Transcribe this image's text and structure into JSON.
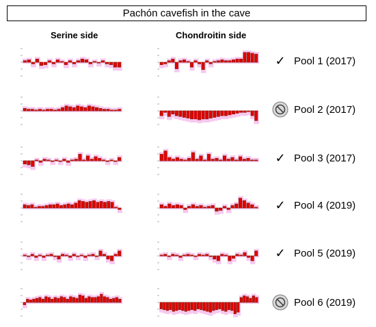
{
  "title": "Pachón cavefish  in the cave",
  "columns": {
    "serine": "Serine side",
    "chondroitin": "Chondroitin side"
  },
  "colors": {
    "bar": "#e00000",
    "bar_edge": "#7a1a00",
    "shadow": "#f6c8ef",
    "tick": "#999999"
  },
  "pools": [
    {
      "label": "Pool 1 (2017)",
      "status": "check-icon"
    },
    {
      "label": "Pool 2 (2017)",
      "status": "excluded-icon"
    },
    {
      "label": "Pool 3 (2017)",
      "status": "check-icon"
    },
    {
      "label": "Pool 4 (2019)",
      "status": "check-icon"
    },
    {
      "label": "Pool 5 (2019)",
      "status": "check-icon"
    },
    {
      "label": "Pool 6 (2019)",
      "status": "excluded-icon"
    }
  ],
  "chart_data": [
    {
      "type": "bar",
      "pool": "Pool 1 (2017)",
      "side": "Serine side",
      "ylim": [
        -1,
        1
      ],
      "values": [
        0.1,
        0.15,
        -0.1,
        0.2,
        -0.2,
        -0.15,
        0.1,
        -0.1,
        0.15,
        0.05,
        -0.15,
        0.1,
        -0.1,
        0.1,
        0.2,
        0.15,
        -0.1,
        0.05,
        -0.05,
        0.1,
        -0.1,
        -0.15,
        -0.3,
        -0.3
      ]
    },
    {
      "type": "bar",
      "pool": "Pool 1 (2017)",
      "side": "Chondroitin side",
      "ylim": [
        -1,
        1
      ],
      "values": [
        -0.15,
        -0.1,
        0.1,
        0.2,
        -0.4,
        0.1,
        0.15,
        0.05,
        -0.3,
        0.1,
        -0.1,
        -0.45,
        0.1,
        -0.1,
        0.05,
        0.1,
        0.15,
        0.1,
        0.1,
        0.15,
        0.2,
        0.2,
        0.6,
        0.6,
        0.55,
        0.5
      ]
    },
    {
      "type": "bar",
      "pool": "Pool 2 (2017)",
      "side": "Serine side",
      "ylim": [
        -1,
        1
      ],
      "values": [
        0.15,
        0.1,
        0.1,
        0.05,
        0.1,
        0.05,
        0.1,
        0.1,
        0.05,
        0.1,
        0.2,
        0.3,
        0.25,
        0.2,
        0.3,
        0.25,
        0.2,
        0.3,
        0.25,
        0.2,
        0.15,
        0.1,
        0.1,
        0.05,
        0.05,
        0.1
      ]
    },
    {
      "type": "bar",
      "pool": "Pool 2 (2017)",
      "side": "Chondroitin side",
      "ylim": [
        -1,
        1
      ],
      "values": [
        -0.3,
        -0.1,
        -0.35,
        -0.2,
        -0.3,
        -0.35,
        -0.4,
        -0.45,
        -0.5,
        -0.5,
        -0.55,
        -0.5,
        -0.5,
        -0.45,
        -0.4,
        -0.35,
        -0.3,
        -0.3,
        -0.25,
        -0.2,
        -0.15,
        -0.1,
        -0.1,
        -0.05,
        -0.3,
        -0.6
      ]
    },
    {
      "type": "bar",
      "pool": "Pool 3 (2017)",
      "side": "Serine side",
      "ylim": [
        -1,
        1
      ],
      "values": [
        -0.2,
        -0.25,
        -0.35,
        0.05,
        -0.1,
        0.1,
        0.05,
        -0.05,
        0.05,
        -0.05,
        0.1,
        -0.1,
        0.05,
        0.1,
        0.4,
        0.05,
        0.3,
        0.1,
        0.25,
        0.15,
        0.05,
        -0.05,
        0.05,
        -0.05,
        0.2
      ]
    },
    {
      "type": "bar",
      "pool": "Pool 3 (2017)",
      "side": "Chondroitin side",
      "ylim": [
        -1,
        1
      ],
      "values": [
        0.4,
        0.6,
        0.2,
        0.1,
        0.2,
        0.1,
        0.05,
        0.15,
        0.5,
        0.1,
        0.3,
        0.05,
        0.4,
        0.1,
        0.15,
        0.05,
        0.3,
        0.1,
        0.2,
        0.05,
        0.25,
        0.1,
        0.15,
        0.05,
        0.05
      ]
    },
    {
      "type": "bar",
      "pool": "Pool 4 (2019)",
      "side": "Serine side",
      "ylim": [
        -1,
        1
      ],
      "values": [
        0.2,
        0.15,
        0.2,
        0.05,
        0.1,
        0.1,
        0.15,
        0.2,
        0.2,
        0.25,
        0.15,
        0.2,
        0.25,
        0.2,
        0.3,
        0.45,
        0.4,
        0.35,
        0.4,
        0.45,
        0.35,
        0.4,
        0.35,
        0.4,
        0.35,
        0.05,
        -0.1
      ]
    },
    {
      "type": "bar",
      "pool": "Pool 4 (2019)",
      "side": "Chondroitin side",
      "ylim": [
        -1,
        1
      ],
      "values": [
        0.2,
        0.1,
        0.25,
        0.15,
        0.2,
        0.15,
        -0.1,
        0.1,
        0.2,
        0.1,
        0.15,
        0.05,
        0.1,
        0.15,
        -0.2,
        -0.15,
        0.1,
        -0.1,
        0.15,
        0.25,
        0.6,
        0.45,
        0.3,
        0.2,
        0.05
      ]
    },
    {
      "type": "bar",
      "pool": "Pool 5 (2019)",
      "side": "Serine side",
      "ylim": [
        -1,
        1
      ],
      "values": [
        0.05,
        -0.05,
        0.1,
        -0.1,
        0.05,
        -0.1,
        0.05,
        0.1,
        -0.05,
        -0.2,
        0.1,
        0.05,
        -0.1,
        0.1,
        -0.05,
        0.05,
        -0.1,
        0.05,
        0.1,
        -0.05,
        0.3,
        0.1,
        -0.2,
        -0.3,
        0.1,
        0.3
      ]
    },
    {
      "type": "bar",
      "pool": "Pool 5 (2019)",
      "side": "Chondroitin side",
      "ylim": [
        -1,
        1
      ],
      "values": [
        0.05,
        0.1,
        -0.05,
        0.1,
        0.05,
        -0.1,
        0.05,
        0.1,
        0.05,
        -0.05,
        0.1,
        0.05,
        0.1,
        -0.05,
        -0.2,
        -0.3,
        0.1,
        0.05,
        -0.3,
        -0.15,
        0.1,
        0.05,
        0.2,
        -0.1,
        -0.3,
        0.3
      ]
    },
    {
      "type": "bar",
      "pool": "Pool 6 (2019)",
      "side": "Serine side",
      "ylim": [
        -1,
        1
      ],
      "values": [
        -0.15,
        0.2,
        0.15,
        0.2,
        0.25,
        0.3,
        0.2,
        0.35,
        0.3,
        0.2,
        0.3,
        0.25,
        0.35,
        0.3,
        0.2,
        0.35,
        0.3,
        0.25,
        0.45,
        0.4,
        0.25,
        0.35,
        0.3,
        0.3,
        0.35,
        0.5,
        0.35,
        0.3,
        0.2,
        0.25,
        0.3,
        0.2
      ]
    },
    {
      "type": "bar",
      "pool": "Pool 6 (2019)",
      "side": "Chondroitin side",
      "ylim": [
        -1,
        1
      ],
      "values": [
        -0.4,
        -0.45,
        -0.5,
        -0.45,
        -0.55,
        -0.5,
        -0.45,
        -0.5,
        -0.55,
        -0.5,
        -0.45,
        -0.5,
        -0.4,
        -0.45,
        -0.5,
        -0.55,
        -0.6,
        -0.5,
        -0.45,
        -0.4,
        -0.5,
        -0.55,
        -0.45,
        -0.5,
        -0.7,
        -0.6,
        0.3,
        0.4,
        0.35,
        0.25,
        0.4,
        0.3
      ]
    }
  ]
}
